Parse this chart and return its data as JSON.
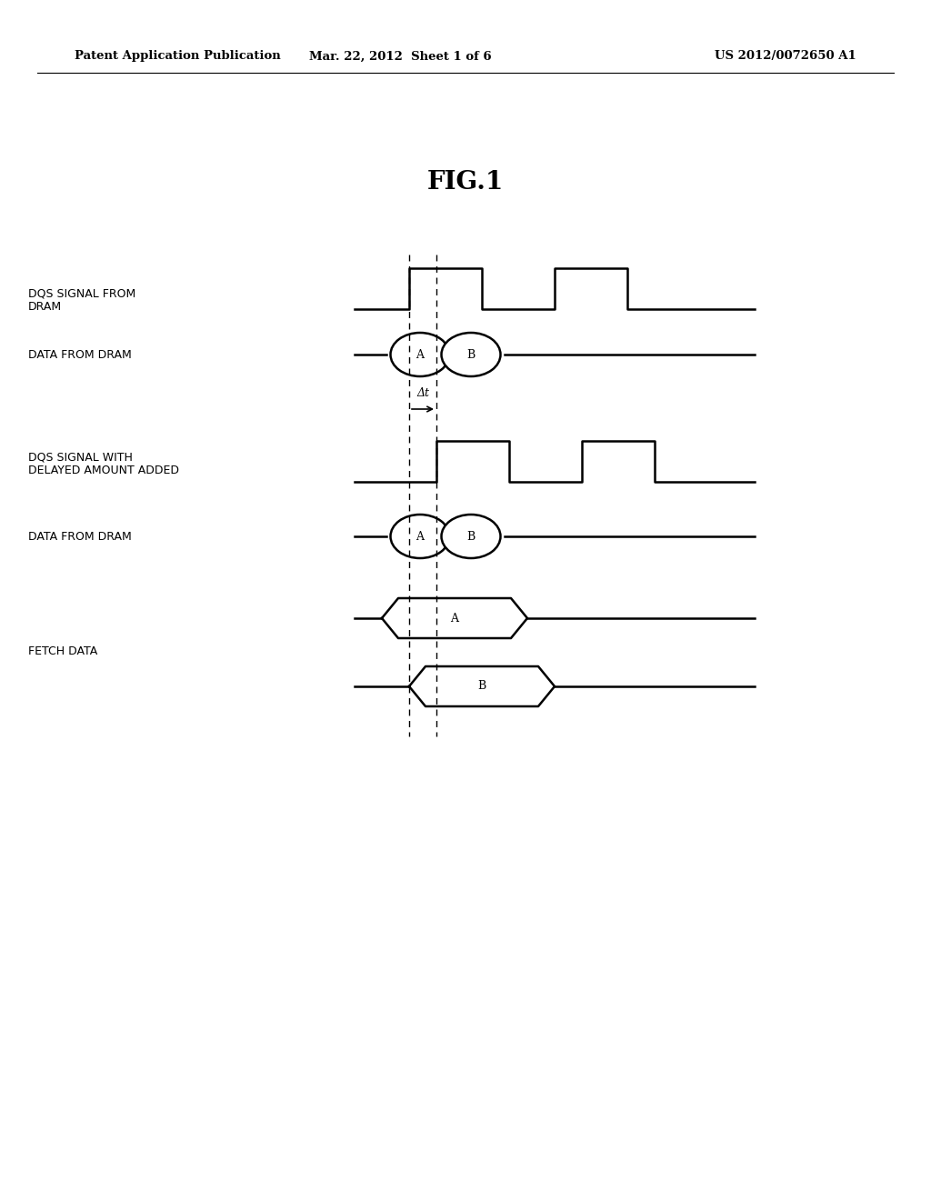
{
  "title": "FIG.1",
  "header_left": "Patent Application Publication",
  "header_mid": "Mar. 22, 2012  Sheet 1 of 6",
  "header_right": "US 2012/0072650 A1",
  "bg_color": "#ffffff",
  "line_color": "#000000",
  "label_dqs1": "DQS SIGNAL FROM\nDRAM",
  "label_data1": "DATA FROM DRAM",
  "label_delta": "Δt",
  "label_dqs2": "DQS SIGNAL WITH\nDELAYED AMOUNT ADDED",
  "label_data2": "DATA FROM DRAM",
  "label_fetch": "FETCH DATA",
  "fontsize_header": 9.5,
  "fontsize_title": 20,
  "fontsize_label": 9,
  "fontsize_signal": 9
}
